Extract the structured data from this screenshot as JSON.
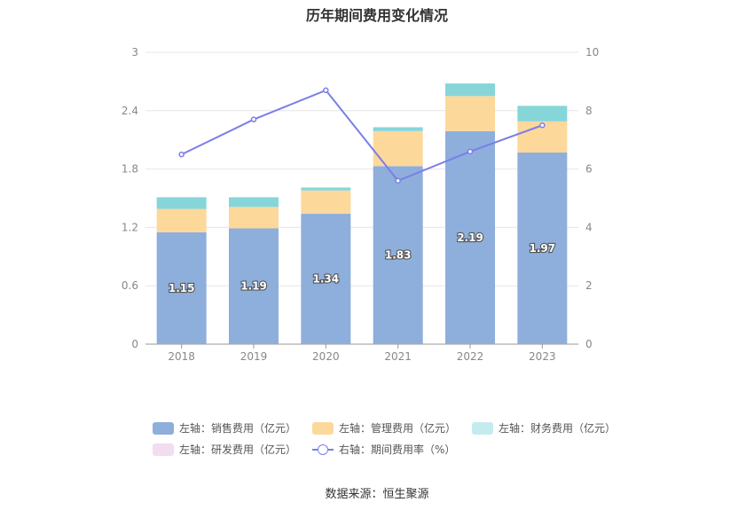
{
  "chart_data": {
    "type": "bar",
    "title": "历年期间费用变化情况",
    "categories": [
      "2018",
      "2019",
      "2020",
      "2021",
      "2022",
      "2023"
    ],
    "left_axis": {
      "ylim": [
        0,
        3
      ],
      "ticks": [
        "0",
        "0.6",
        "1.2",
        "1.8",
        "2.4",
        "3"
      ]
    },
    "right_axis": {
      "ylim": [
        0,
        10
      ],
      "ticks": [
        "0",
        "2",
        "4",
        "6",
        "8",
        "10"
      ]
    },
    "grid": true,
    "stacked": true,
    "series": [
      {
        "name": "左轴：销售费用（亿元）",
        "axis": "left",
        "type": "bar",
        "color": "#8eaedb",
        "values": [
          1.15,
          1.19,
          1.34,
          1.83,
          2.19,
          1.97
        ],
        "labels": [
          "1.15",
          "1.19",
          "1.34",
          "1.83",
          "2.19",
          "1.97"
        ]
      },
      {
        "name": "左轴：管理费用（亿元）",
        "axis": "left",
        "type": "bar",
        "color": "#fdd89b",
        "values": [
          0.24,
          0.22,
          0.24,
          0.36,
          0.36,
          0.32
        ]
      },
      {
        "name": "左轴：财务费用（亿元）",
        "axis": "left",
        "type": "bar",
        "color": "#86d6d9",
        "values": [
          0.12,
          0.1,
          0.03,
          0.04,
          0.13,
          0.16
        ]
      },
      {
        "name": "左轴：研发费用（亿元）",
        "axis": "left",
        "type": "bar",
        "color": "#f2dcef",
        "values": [
          0,
          0,
          0,
          0,
          0,
          0
        ]
      },
      {
        "name": "右轴：期间费用率（%）",
        "axis": "right",
        "type": "line",
        "color": "#7b7fe8",
        "values": [
          6.5,
          7.7,
          8.7,
          5.6,
          6.6,
          7.5
        ]
      }
    ],
    "legend_position": "bottom"
  },
  "source": "数据来源：恒生聚源"
}
